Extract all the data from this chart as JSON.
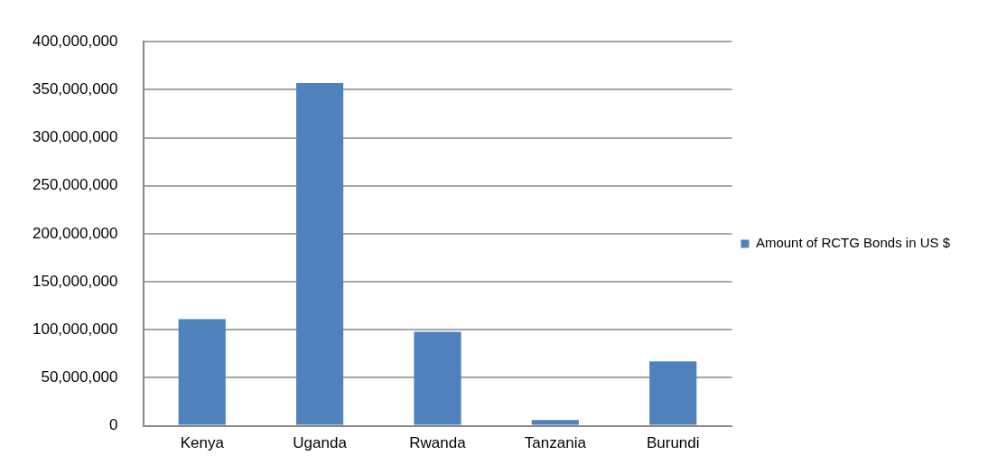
{
  "chart_data": {
    "type": "bar",
    "categories": [
      "Kenya",
      "Uganda",
      "Rwanda",
      "Tanzania",
      "Burundi"
    ],
    "series": [
      {
        "name": "Amount of RCTG Bonds in US $",
        "color": "#4f81bd",
        "values": [
          111000000,
          357000000,
          98000000,
          6000000,
          67000000
        ]
      }
    ],
    "ylim": [
      0,
      400000000
    ],
    "yticks": [
      0,
      {
        "value": 50000000,
        "label": "50,000,000"
      },
      {
        "value": 100000000,
        "label": "100,000,000"
      },
      {
        "value": 150000000,
        "label": "150,000,000"
      },
      {
        "value": 200000000,
        "label": "200,000,000"
      },
      {
        "value": 250000000,
        "label": "250,000,000"
      },
      {
        "value": 300000000,
        "label": "300,000,000"
      },
      {
        "value": 350000000,
        "label": "350,000,000"
      },
      {
        "value": 400000000,
        "label": "400,000,000"
      }
    ],
    "grid": "y",
    "legend": "right"
  }
}
